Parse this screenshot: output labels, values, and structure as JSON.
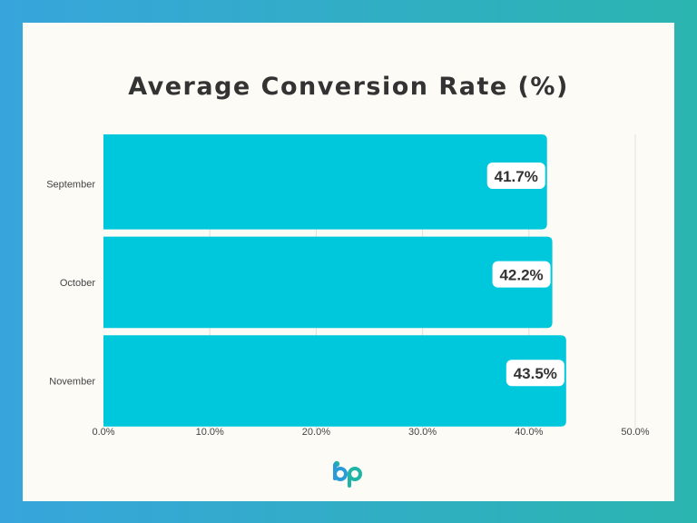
{
  "chart_data": {
    "type": "bar",
    "orientation": "horizontal",
    "title": "Average Conversion Rate (%)",
    "categories": [
      "September",
      "October",
      "November"
    ],
    "values": [
      41.7,
      42.2,
      43.5
    ],
    "data_labels": [
      "41.7%",
      "42.2%",
      "43.5%"
    ],
    "xlabel": "",
    "ylabel": "",
    "xlim": [
      0,
      50
    ],
    "x_ticks": [
      "0.0%",
      "10.0%",
      "20.0%",
      "30.0%",
      "40.0%",
      "50.0%"
    ],
    "grid": "vertical",
    "legend": "none"
  },
  "colors": {
    "bar": "#00c8dc",
    "gridline": "#e0e0e0",
    "axis_text": "#444444",
    "background_left": "#37a5dc",
    "background_right": "#2bb5b0",
    "card": "#fdfbf6",
    "logo_blue": "#2a9ad8",
    "logo_teal": "#1fb5a6"
  },
  "logo": {
    "icon": "bp-logo-icon"
  }
}
